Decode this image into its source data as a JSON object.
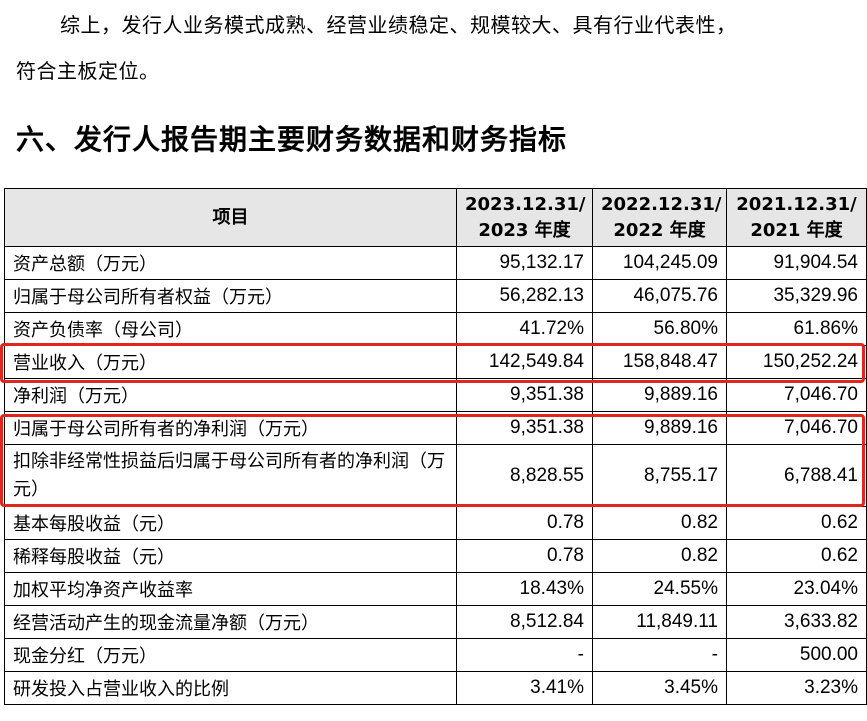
{
  "paragraph": {
    "line1": "综上，发行人业务模式成熟、经营业绩稳定、规模较大、具有行业代表性，",
    "line2": "符合主板定位。"
  },
  "section_title": "六、发行人报告期主要财务数据和财务指标",
  "table": {
    "header": {
      "item": "项目",
      "cols": [
        [
          "2023.12.31/",
          "2023 年度"
        ],
        [
          "2022.12.31/",
          "2022 年度"
        ],
        [
          "2021.12.31/",
          "2021 年度"
        ]
      ]
    },
    "rows": [
      {
        "name": "资产总额（万元）",
        "values": [
          "95,132.17",
          "104,245.09",
          "91,904.54"
        ]
      },
      {
        "name": "归属于母公司所有者权益（万元）",
        "values": [
          "56,282.13",
          "46,075.76",
          "35,329.96"
        ]
      },
      {
        "name": "资产负债率（母公司）",
        "values": [
          "41.72%",
          "56.80%",
          "61.86%"
        ]
      },
      {
        "name": "营业收入（万元）",
        "values": [
          "142,549.84",
          "158,848.47",
          "150,252.24"
        ]
      },
      {
        "name": "净利润（万元）",
        "values": [
          "9,351.38",
          "9,889.16",
          "7,046.70"
        ]
      },
      {
        "name": "归属于母公司所有者的净利润（万元）",
        "values": [
          "9,351.38",
          "9,889.16",
          "7,046.70"
        ]
      },
      {
        "name": "扣除非经常性损益后归属于母公司所有者的净利润（万元）",
        "values": [
          "8,828.55",
          "8,755.17",
          "6,788.41"
        ]
      },
      {
        "name": "基本每股收益（元）",
        "values": [
          "0.78",
          "0.82",
          "0.62"
        ]
      },
      {
        "name": "稀释每股收益（元）",
        "values": [
          "0.78",
          "0.82",
          "0.62"
        ]
      },
      {
        "name": "加权平均净资产收益率",
        "values": [
          "18.43%",
          "24.55%",
          "23.04%"
        ]
      },
      {
        "name": "经营活动产生的现金流量净额（万元）",
        "values": [
          "8,512.84",
          "11,849.11",
          "3,633.82"
        ]
      },
      {
        "name": "现金分红（万元）",
        "values": [
          "-",
          "-",
          "500.00"
        ]
      },
      {
        "name": "研发投入占营业收入的比例",
        "values": [
          "3.41%",
          "3.45%",
          "3.23%"
        ]
      }
    ]
  },
  "highlight_color": "#e0261f"
}
